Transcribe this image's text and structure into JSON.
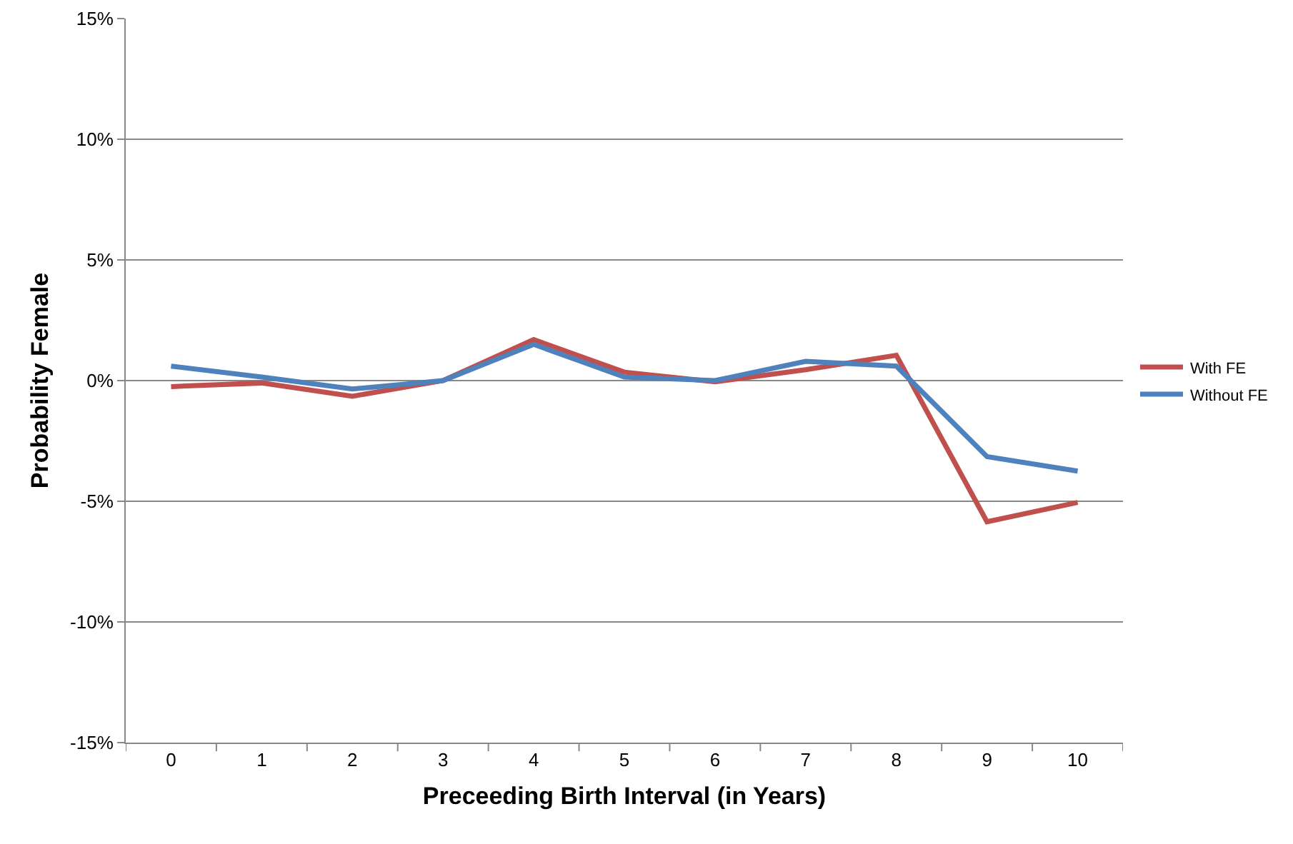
{
  "chart_data": {
    "type": "line",
    "xlabel": "Preceeding Birth Interval (in Years)",
    "ylabel": "Probability Female",
    "categories": [
      "0",
      "1",
      "2",
      "3",
      "4",
      "5",
      "6",
      "7",
      "8",
      "9",
      "10"
    ],
    "series": [
      {
        "name": "With FE",
        "color": "#c0504d",
        "values": [
          -0.25,
          -0.1,
          -0.65,
          0,
          1.7,
          0.35,
          -0.05,
          0.45,
          1.05,
          -5.85,
          -5.05
        ]
      },
      {
        "name": "Without FE",
        "color": "#4f81bd",
        "values": [
          0.6,
          0.15,
          -0.35,
          0,
          1.5,
          0.15,
          0,
          0.8,
          0.6,
          -3.15,
          -3.75
        ]
      }
    ],
    "ylim": [
      -15,
      15
    ],
    "yticks": [
      {
        "value": -15,
        "label": "-15%"
      },
      {
        "value": -10,
        "label": "-10%"
      },
      {
        "value": -5,
        "label": "-5%"
      },
      {
        "value": 0,
        "label": "0%"
      },
      {
        "value": 5,
        "label": "5%"
      },
      {
        "value": 10,
        "label": "10%"
      },
      {
        "value": 15,
        "label": "15%"
      }
    ],
    "grid": "y",
    "legend": "right",
    "marker": "none",
    "line_style": "solid"
  }
}
